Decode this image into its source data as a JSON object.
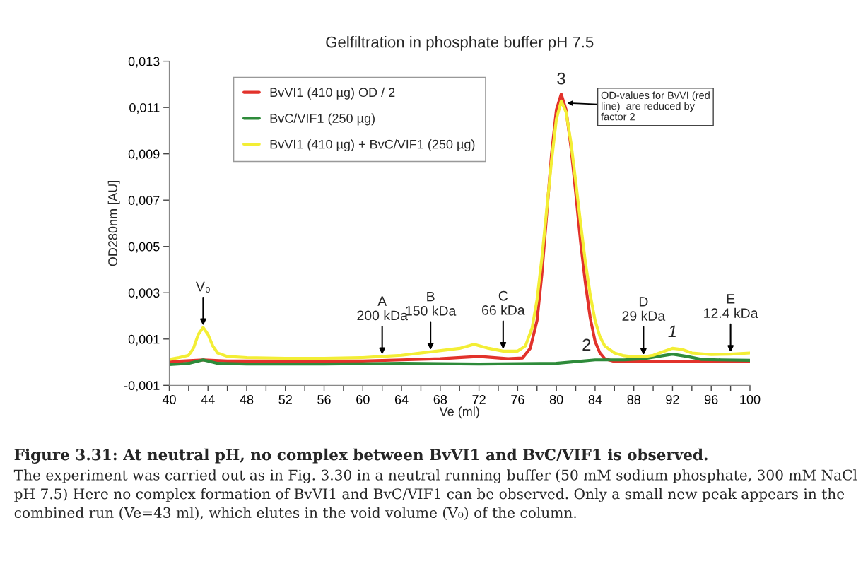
{
  "chart_data": {
    "type": "line",
    "title": "Gelfiltration in phosphate buffer pH 7.5",
    "xlabel": "Ve (ml)",
    "ylabel": "OD280nm [AU]",
    "xlim": [
      40,
      100
    ],
    "xticks": [
      40,
      {
        "value": 42,
        "label": null
      },
      44,
      {
        "value": 46,
        "label": null
      },
      48,
      {
        "value": 50,
        "label": null
      },
      52,
      {
        "value": 54,
        "label": null
      },
      56,
      {
        "value": 58,
        "label": null
      },
      60,
      {
        "value": 62,
        "label": null
      },
      64,
      {
        "value": 66,
        "label": null
      },
      68,
      {
        "value": 70,
        "label": null
      },
      72,
      {
        "value": 74,
        "label": null
      },
      76,
      {
        "value": 78,
        "label": null
      },
      80,
      {
        "value": 82,
        "label": null
      },
      84,
      {
        "value": 86,
        "label": null
      },
      88,
      {
        "value": 90,
        "label": null
      },
      92,
      {
        "value": 94,
        "label": null
      },
      96,
      {
        "value": 98,
        "label": null
      },
      100
    ],
    "ylim": [
      -0.001,
      0.013
    ],
    "yticks": [
      {
        "value": -0.001,
        "label": "-0,001"
      },
      {
        "value": 0.001,
        "label": "0,001"
      },
      {
        "value": 0.003,
        "label": "0,003"
      },
      {
        "value": 0.005,
        "label": "0,005"
      },
      {
        "value": 0.007,
        "label": "0,007"
      },
      {
        "value": 0.009,
        "label": "0,009"
      },
      {
        "value": 0.011,
        "label": "0,011"
      },
      {
        "value": 0.013,
        "label": "0,013"
      }
    ],
    "grid": false,
    "legend": "top left",
    "marker": "none",
    "line_style": "solid",
    "series": [
      {
        "name": "BvVI1 (410 µg) OD / 2",
        "color": "#e2322b",
        "x": [
          40,
          43.5,
          46,
          52,
          60,
          64,
          68,
          72,
          75,
          76.5,
          77.3,
          78,
          78.5,
          79,
          79.5,
          80,
          80.5,
          81,
          81.5,
          82,
          82.5,
          83,
          83.5,
          84,
          84.5,
          85,
          86,
          88,
          92,
          96,
          100
        ],
        "values": [
          2e-05,
          0.0001,
          5e-05,
          5e-05,
          5e-05,
          0.0001,
          0.00015,
          0.00025,
          0.00015,
          0.00018,
          0.0006,
          0.0018,
          0.0038,
          0.0064,
          0.009,
          0.0109,
          0.01158,
          0.0109,
          0.0093,
          0.0073,
          0.0052,
          0.0034,
          0.0019,
          0.0009,
          0.0004,
          0.00015,
          3e-05,
          2e-05,
          2e-05,
          4e-05,
          5e-05
        ]
      },
      {
        "name": "BvC/VIF1 (250 µg)",
        "color": "#2e8b3a",
        "x": [
          40,
          42,
          43.5,
          45,
          48,
          56,
          64,
          72,
          80,
          84,
          87,
          89,
          90.5,
          92,
          93.5,
          95,
          97,
          100
        ],
        "values": [
          -0.0001,
          -5e-05,
          0.0001,
          -5e-05,
          -8e-05,
          -8e-05,
          -5e-05,
          -8e-05,
          -5e-05,
          0.0001,
          0.0001,
          0.00015,
          0.00025,
          0.00035,
          0.00025,
          0.00012,
          0.0001,
          8e-05
        ]
      },
      {
        "name": "BvVI1 (410 µg) + BvC/VIF1 (250 µg)",
        "color": "#f3ee35",
        "x": [
          40,
          41,
          42,
          42.5,
          43,
          43.5,
          44,
          44.5,
          45,
          46,
          48,
          52,
          56,
          60,
          62,
          64,
          67,
          70,
          71.5,
          73,
          74.5,
          76,
          76.8,
          77.5,
          78,
          78.5,
          79,
          79.5,
          80,
          80.5,
          81,
          81.5,
          82,
          82.5,
          83,
          83.5,
          84,
          84.5,
          85,
          86,
          87,
          88,
          89,
          90,
          91,
          92,
          93,
          94,
          96,
          98,
          100
        ],
        "values": [
          0.00012,
          0.0002,
          0.0003,
          0.0006,
          0.0012,
          0.0015,
          0.0012,
          0.0007,
          0.0004,
          0.00025,
          0.0002,
          0.00017,
          0.00017,
          0.0002,
          0.00025,
          0.0003,
          0.00045,
          0.0006,
          0.00077,
          0.0006,
          0.00048,
          0.00048,
          0.0007,
          0.0015,
          0.0027,
          0.0045,
          0.0066,
          0.0087,
          0.0105,
          0.01128,
          0.0108,
          0.0095,
          0.0078,
          0.006,
          0.0043,
          0.0029,
          0.0018,
          0.0011,
          0.0007,
          0.0004,
          0.00028,
          0.00023,
          0.00023,
          0.0003,
          0.00045,
          0.0006,
          0.00055,
          0.0004,
          0.00033,
          0.00035,
          0.0004
        ]
      }
    ],
    "annotations": [
      {
        "text": "V₀",
        "x": 43.5,
        "y": 0.0015
      },
      {
        "text": "A\n200 kDa",
        "x": 62,
        "y": 0.00025
      },
      {
        "text": "B\n150 kDa",
        "x": 67,
        "y": 0.00045
      },
      {
        "text": "C\n66 kDa",
        "x": 74.5,
        "y": 0.00048
      },
      {
        "text": "D\n29 kDa",
        "x": 89,
        "y": 0.00023
      },
      {
        "text": "E\n12.4 kDa",
        "x": 98,
        "y": 0.00035
      },
      {
        "text": "OD-values for BvVI (red\nline)  are reduced by\nfactor 2",
        "x": 80.9,
        "y": 0.0112
      },
      {
        "text": "3",
        "x": 80.5,
        "y": 0.0116
      },
      {
        "text": "2",
        "x": 84,
        "y": 0.0001
      },
      {
        "text": "1",
        "x": 92,
        "y": 0.0006
      },
      "Figure 3.31: At neutral pH, no complex between BvVI1 and BvC/VIF1 is observed.",
      "The experiment was carried out as in Fig. 3.30 in a neutral running buffer (50 mM sodium phosphate, 300 mM NaCl pH 7.5) Here no complex formation of BvVI1 and BvC/VIF1 can be observed. Only a small new peak appears in the combined run (Ve=43 ml), which elutes in the void volume (V₀) of the column."
    ]
  }
}
